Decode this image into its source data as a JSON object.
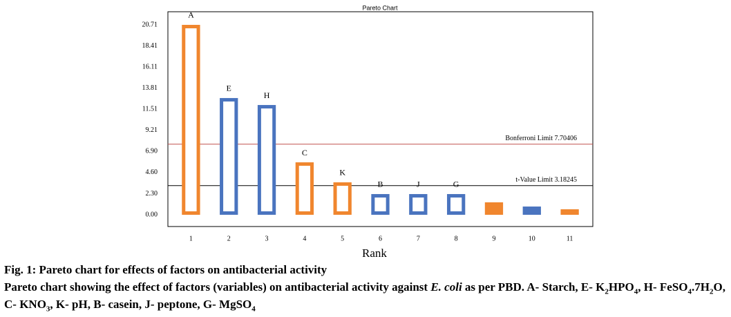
{
  "chart_data": {
    "type": "bar",
    "title": "Pareto Chart",
    "x_label": "Rank",
    "categories": [
      "1",
      "2",
      "3",
      "4",
      "5",
      "6",
      "7",
      "8",
      "9",
      "10",
      "11"
    ],
    "values": [
      20.71,
      12.73,
      11.97,
      5.72,
      3.54,
      2.26,
      2.26,
      2.26,
      1.36,
      0.9,
      0.6
    ],
    "bar_labels": [
      "A",
      "E",
      "H",
      "C",
      "K",
      "B",
      "J",
      "G",
      null,
      null,
      null
    ],
    "colors": [
      "#f0862e",
      "#4a74bf",
      "#4a74bf",
      "#f0862e",
      "#f0862e",
      "#4a74bf",
      "#4a74bf",
      "#4a74bf",
      "#f0862e",
      "#4a74bf",
      "#f0862e"
    ],
    "hollow": [
      true,
      true,
      true,
      true,
      true,
      true,
      true,
      true,
      false,
      false,
      false
    ],
    "ylim": [
      -1.28,
      22.14
    ],
    "yticks": [
      {
        "value": 0,
        "label": "0.00"
      },
      {
        "value": 2.3,
        "label": "2.30"
      },
      {
        "value": 4.6,
        "label": "4.60"
      },
      {
        "value": 6.9,
        "label": "6.90"
      },
      {
        "value": 9.21,
        "label": "9.21"
      },
      {
        "value": 11.51,
        "label": "11.51"
      },
      {
        "value": 13.81,
        "label": "13.81"
      },
      {
        "value": 16.11,
        "label": "16.11"
      },
      {
        "value": 18.41,
        "label": "18.41"
      },
      {
        "value": 20.71,
        "label": "20.71"
      }
    ],
    "reference_lines": [
      {
        "label": "Bonferroni Limit 7.70406",
        "value": 7.70406,
        "color": "#c0504d"
      },
      {
        "label": "t-Value Limit 3.18245",
        "value": 3.18245,
        "color": "#000000"
      }
    ]
  },
  "caption": {
    "title": "Fig. 1: Pareto chart for effects of factors on antibacterial activity",
    "text": [
      "Pareto chart showing the effect of factors (variables) on antibacterial activity against ",
      "E. coli",
      " as per PBD. A- Starch, E- K",
      "2",
      "HPO",
      "4",
      ", H- FeSO",
      "4",
      ".7H",
      "2",
      "O, C- KNO",
      "3",
      ", K- pH, B- casein, J- peptone, G- MgSO",
      "4"
    ]
  }
}
